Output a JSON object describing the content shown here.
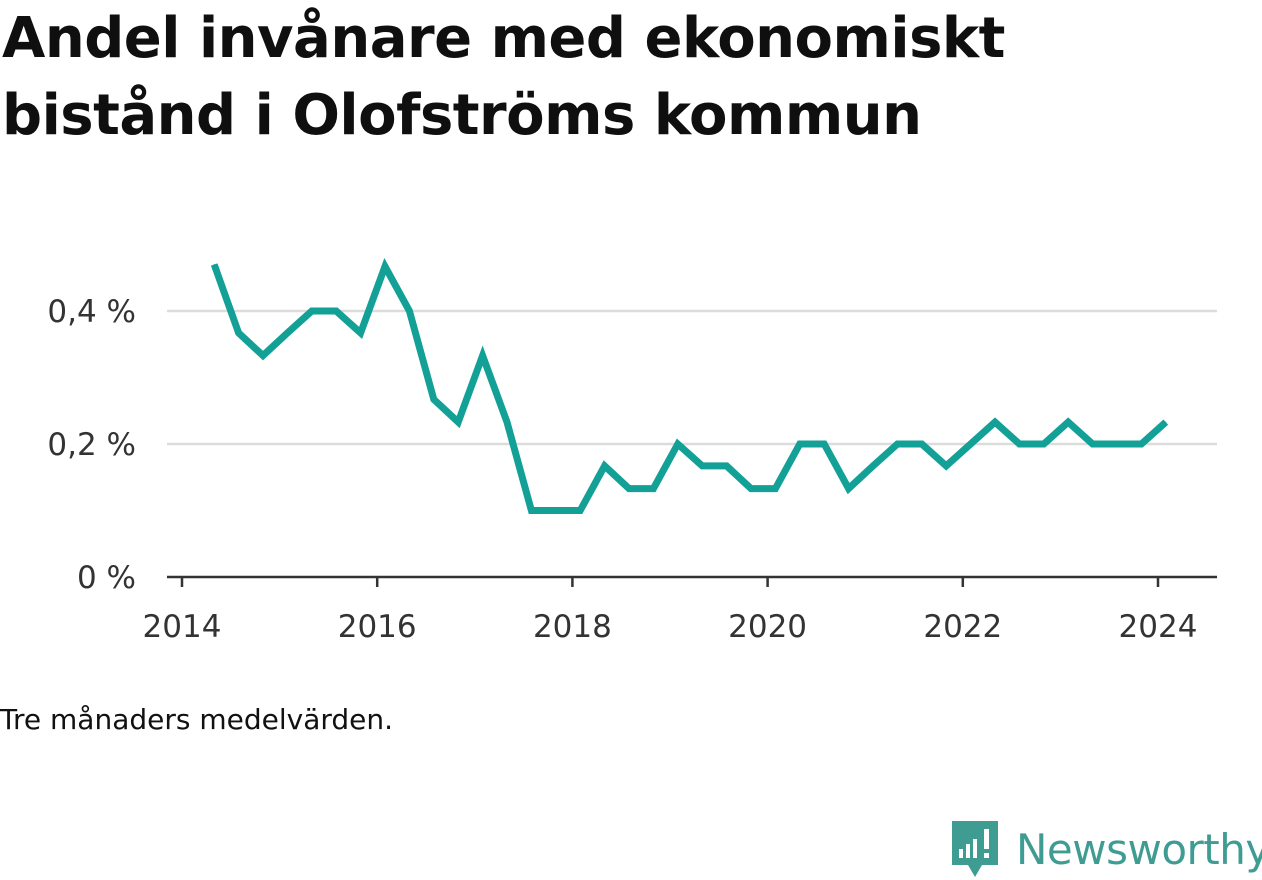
{
  "title": "Andel invånare med ekonomiskt bistånd i Olofströms kommun",
  "note": "Tre månaders medelvärden.",
  "brand": {
    "name": "Newsworthy",
    "color": "#3f9c93",
    "icon": "newsworthy-logo-icon"
  },
  "chart_data": {
    "type": "line",
    "title": "Andel invånare med ekonomiskt bistånd i Olofströms kommun",
    "xlabel": "",
    "ylabel": "",
    "x_ticks": [
      "2014",
      "2016",
      "2018",
      "2020",
      "2022",
      "2024"
    ],
    "y_ticks": [
      {
        "value": 0,
        "label": "0 %"
      },
      {
        "value": 0.2,
        "label": "0,2 %"
      },
      {
        "value": 0.4,
        "label": "0,4 %"
      }
    ],
    "xlim": [
      2014.0,
      2024.6
    ],
    "ylim": [
      0,
      0.5
    ],
    "grid": true,
    "line_color": "#13a096",
    "series": [
      {
        "name": "",
        "points": [
          {
            "x": 2014.33,
            "y": 0.47
          },
          {
            "x": 2014.58,
            "y": 0.367
          },
          {
            "x": 2014.83,
            "y": 0.333
          },
          {
            "x": 2015.08,
            "y": 0.367
          },
          {
            "x": 2015.33,
            "y": 0.4
          },
          {
            "x": 2015.58,
            "y": 0.4
          },
          {
            "x": 2015.83,
            "y": 0.367
          },
          {
            "x": 2016.08,
            "y": 0.467
          },
          {
            "x": 2016.33,
            "y": 0.4
          },
          {
            "x": 2016.58,
            "y": 0.267
          },
          {
            "x": 2016.83,
            "y": 0.233
          },
          {
            "x": 2017.08,
            "y": 0.333
          },
          {
            "x": 2017.33,
            "y": 0.233
          },
          {
            "x": 2017.58,
            "y": 0.1
          },
          {
            "x": 2017.83,
            "y": 0.1
          },
          {
            "x": 2018.08,
            "y": 0.1
          },
          {
            "x": 2018.33,
            "y": 0.167
          },
          {
            "x": 2018.58,
            "y": 0.133
          },
          {
            "x": 2018.83,
            "y": 0.133
          },
          {
            "x": 2019.08,
            "y": 0.2
          },
          {
            "x": 2019.33,
            "y": 0.167
          },
          {
            "x": 2019.58,
            "y": 0.167
          },
          {
            "x": 2019.83,
            "y": 0.133
          },
          {
            "x": 2020.08,
            "y": 0.133
          },
          {
            "x": 2020.33,
            "y": 0.2
          },
          {
            "x": 2020.58,
            "y": 0.2
          },
          {
            "x": 2020.83,
            "y": 0.133
          },
          {
            "x": 2021.08,
            "y": 0.167
          },
          {
            "x": 2021.33,
            "y": 0.2
          },
          {
            "x": 2021.58,
            "y": 0.2
          },
          {
            "x": 2021.83,
            "y": 0.167
          },
          {
            "x": 2022.08,
            "y": 0.2
          },
          {
            "x": 2022.33,
            "y": 0.233
          },
          {
            "x": 2022.58,
            "y": 0.2
          },
          {
            "x": 2022.83,
            "y": 0.2
          },
          {
            "x": 2023.08,
            "y": 0.233
          },
          {
            "x": 2023.33,
            "y": 0.2
          },
          {
            "x": 2023.58,
            "y": 0.2
          },
          {
            "x": 2023.83,
            "y": 0.2
          },
          {
            "x": 2024.08,
            "y": 0.233
          }
        ]
      }
    ]
  }
}
